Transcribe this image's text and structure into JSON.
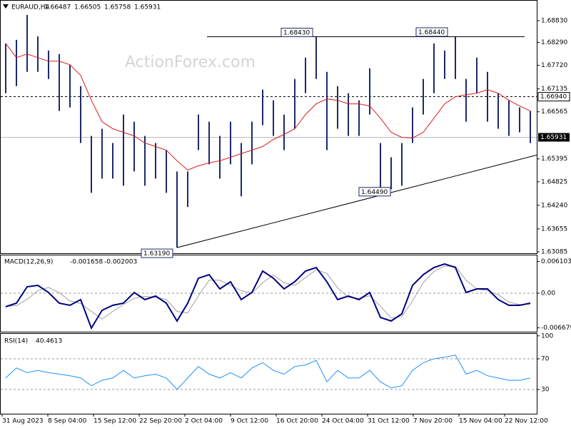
{
  "chart_data": {
    "type": "price-bars",
    "title": "EURAUD,H4",
    "ohlc_header": [
      1.66487,
      1.66505,
      1.65758,
      1.65931
    ],
    "watermark": "ActionForex.com",
    "x_labels": [
      "31 Aug 2023",
      "8 Sep 04:00",
      "15 Sep 12:00",
      "22 Sep 20:00",
      "2 Oct 04:00",
      "9 Oct 12:00",
      "16 Oct 20:00",
      "24 Oct 04:00",
      "31 Oct 12:00",
      "7 Nov 20:00",
      "15 Nov 04:00",
      "22 Nov 12:00"
    ],
    "highs": [
      1.68264,
      1.68353,
      1.68971,
      1.68441,
      1.68087,
      1.67999,
      1.67734,
      1.67203,
      1.65966,
      1.66143,
      1.65789,
      1.66496,
      1.66319,
      1.65966,
      1.65789,
      1.65612,
      1.65082,
      1.65082,
      1.66496,
      1.66319,
      1.65966,
      1.66319,
      1.65789,
      1.66319,
      1.67115,
      1.6685,
      1.66496,
      1.6738,
      1.67911,
      1.6843,
      1.67557,
      1.67203,
      1.67027,
      1.6685,
      1.67645,
      1.65789,
      1.65435,
      1.65789,
      1.66673,
      1.6738,
      1.68264,
      1.68087,
      1.6844,
      1.6738,
      1.67911,
      1.67557,
      1.67027,
      1.6685,
      1.66673,
      1.66585
    ],
    "lows": [
      1.67027,
      1.67203,
      1.67557,
      1.67557,
      1.6738,
      1.66585,
      1.66673,
      1.65789,
      1.64551,
      1.64905,
      1.64905,
      1.64728,
      1.65082,
      1.64728,
      1.64905,
      1.64551,
      1.6319,
      1.64198,
      1.65612,
      1.65259,
      1.64905,
      1.65259,
      1.64463,
      1.65259,
      1.66231,
      1.65966,
      1.65612,
      1.66143,
      1.67027,
      1.6738,
      1.65612,
      1.66143,
      1.65966,
      1.65966,
      1.66496,
      1.6449,
      1.6464,
      1.64728,
      1.65789,
      1.66496,
      1.67027,
      1.6738,
      1.6738,
      1.66319,
      1.67027,
      1.66319,
      1.66143,
      1.65966,
      1.66054,
      1.65789
    ],
    "ma": [
      1.68264,
      1.67911,
      1.67999,
      1.67911,
      1.67822,
      1.67822,
      1.67734,
      1.67469,
      1.6685,
      1.66319,
      1.66143,
      1.66054,
      1.65966,
      1.65789,
      1.65701,
      1.65612,
      1.65347,
      1.65117,
      1.65223,
      1.65294,
      1.65347,
      1.65435,
      1.65524,
      1.65612,
      1.65701,
      1.65877,
      1.66001,
      1.66143,
      1.66496,
      1.66761,
      1.66885,
      1.6685,
      1.66761,
      1.66761,
      1.66708,
      1.66408,
      1.66054,
      1.65931,
      1.65913,
      1.66054,
      1.66408,
      1.66761,
      1.66938,
      1.66991,
      1.67027,
      1.67115,
      1.67027,
      1.6685,
      1.66708,
      1.66585
    ],
    "bar_color": "#1c2a6b",
    "ma_color": "#d81e1e",
    "ylim": [
      1.6305,
      1.69325
    ],
    "yticks": [
      {
        "value": 1.6883,
        "label": "1.68830"
      },
      {
        "value": 1.6829,
        "label": "1.68290"
      },
      {
        "value": 1.6772,
        "label": "1.67720"
      },
      1.67135,
      1.66565,
      1.65395,
      1.64825,
      {
        "value": 1.6424,
        "label": "1.64240"
      },
      1.63655,
      1.63085
    ],
    "annotations": [
      {
        "value": 1.6319,
        "label": "1.63190"
      },
      {
        "value": 1.6449,
        "label": "1.64490"
      },
      {
        "value": 1.6843,
        "label": "1.68430"
      },
      {
        "value": 1.6844,
        "label": "1.68440"
      }
    ],
    "dashed_level": {
      "value": 1.6694,
      "label": "1.66940"
    },
    "last_price": {
      "value": 1.65931,
      "label": "1.65931"
    },
    "macd_title": "MACD(12,26,9)",
    "macd_header": [
      -0.001658,
      -0.002003
    ],
    "macd": [
      -0.00261,
      -0.00192,
      0.00124,
      0.00151,
      0.00014,
      -0.00192,
      -0.00234,
      -0.00124,
      -0.00673,
      -0.0033,
      -0.00234,
      -0.00192,
      0.00014,
      -0.00124,
      -0.00055,
      -0.00192,
      -0.00536,
      -0.00192,
      0.00289,
      0.00357,
      0.00082,
      0.0022,
      -0.00124,
      0.00014,
      0.00426,
      0.00289,
      0.00082,
      0.0022,
      0.00426,
      0.00495,
      0.0022,
      -0.00124,
      -0.00055,
      -0.00124,
      0.00014,
      -0.00467,
      -0.00536,
      -0.00398,
      0.00151,
      0.00357,
      0.00495,
      0.00563,
      0.00495,
      0.00014,
      0.00082,
      0.00082,
      -0.00124,
      -0.00234,
      -0.00234,
      -0.00192
    ],
    "signal": [
      -0.0025,
      -0.0024,
      -0.0012,
      0.0005,
      0.0011,
      0.0001,
      -0.0015,
      -0.002,
      -0.0035,
      -0.005,
      -0.0035,
      -0.0022,
      -0.001,
      -0.0006,
      -0.0008,
      -0.0012,
      -0.0035,
      -0.0038,
      -0.0005,
      0.0025,
      0.0025,
      0.0015,
      0.0005,
      0,
      0.002,
      0.0035,
      0.002,
      0.0015,
      0.003,
      0.0045,
      0.0038,
      0.001,
      -0.0008,
      -0.001,
      -0.0005,
      -0.0025,
      -0.0048,
      -0.0045,
      -0.0015,
      0.002,
      0.0042,
      0.0052,
      0.0052,
      0.0025,
      0.0008,
      0.0005,
      -0.0003,
      -0.0017,
      -0.0022,
      -0.0021
    ],
    "macd_color": "#000080",
    "signal_color": "#a0a0a0",
    "macd_ylim": [
      -0.00742,
      0.00728
    ],
    "macd_yticks": [
      0.006103,
      {
        "value": 0,
        "label": "0.00"
      },
      -0.006679
    ],
    "rsi_title": "RSI(14)",
    "rsi_header": 40.4613,
    "rsi": [
      45,
      58,
      52,
      55,
      52,
      50,
      48,
      45,
      35,
      42,
      45,
      55,
      45,
      48,
      50,
      45,
      30,
      45,
      60,
      50,
      45,
      52,
      45,
      58,
      65,
      55,
      50,
      60,
      62,
      68,
      40,
      55,
      45,
      45,
      55,
      40,
      32,
      35,
      55,
      65,
      70,
      72,
      75,
      50,
      55,
      48,
      45,
      42,
      42,
      45
    ],
    "rsi_color": "#1e90ff",
    "rsi_ylim": [
      -1.6,
      102.6
    ],
    "rsi_yticks": [
      100,
      70,
      30
    ]
  }
}
